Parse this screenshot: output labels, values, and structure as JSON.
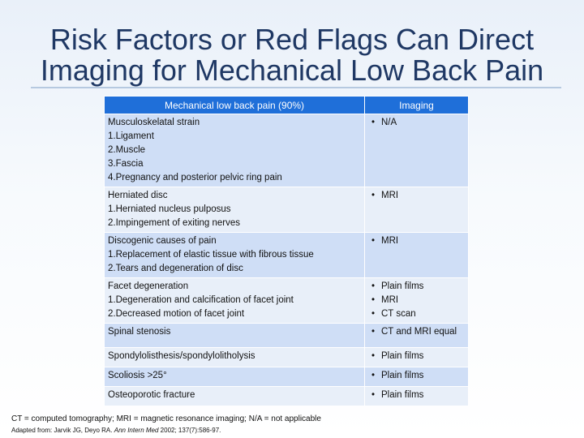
{
  "title": {
    "line1": "Risk Factors or Red Flags Can Direct",
    "line2": "Imaging for Mechanical Low Back Pain"
  },
  "table": {
    "headers": [
      "Mechanical low back pain (90%)",
      "Imaging"
    ],
    "rows": [
      {
        "condition": [
          "Musculoskelatal strain",
          "1.Ligament",
          "2.Muscle",
          "3.Fascia",
          "4.Pregnancy and posterior pelvic ring pain"
        ],
        "imaging": [
          "N/A"
        ]
      },
      {
        "condition": [
          "Herniated disc",
          "1.Herniated nucleus pulposus",
          "2.Impingement of exiting nerves"
        ],
        "imaging": [
          "MRI"
        ]
      },
      {
        "condition": [
          "Discogenic causes of pain",
          "1.Replacement of elastic tissue with fibrous tissue",
          "2.Tears and degeneration of disc"
        ],
        "imaging": [
          "MRI"
        ]
      },
      {
        "condition": [
          "Facet degeneration",
          "1.Degeneration and calcification of facet joint",
          "2.Decreased motion of facet joint"
        ],
        "imaging": [
          "Plain films",
          "MRI",
          "CT scan"
        ]
      },
      {
        "condition": [
          "Spinal stenosis"
        ],
        "imaging": [
          "CT and MRI equal"
        ]
      },
      {
        "condition": [
          "Spondylolisthesis/spondylolitholysis"
        ],
        "imaging": [
          "Plain films"
        ]
      },
      {
        "condition": [
          "Scoliosis >25°"
        ],
        "imaging": [
          "Plain films"
        ]
      },
      {
        "condition": [
          "Osteoporotic fracture"
        ],
        "imaging": [
          "Plain films"
        ]
      }
    ]
  },
  "footnote": "CT = computed tomography; MRI = magnetic resonance imaging; N/A = not applicable",
  "citation": {
    "prefix": "Adapted from: Jarvik JG, Deyo RA.",
    "journal": "Ann Intern Med",
    "suffix": "2002; 137(7):586-97."
  }
}
